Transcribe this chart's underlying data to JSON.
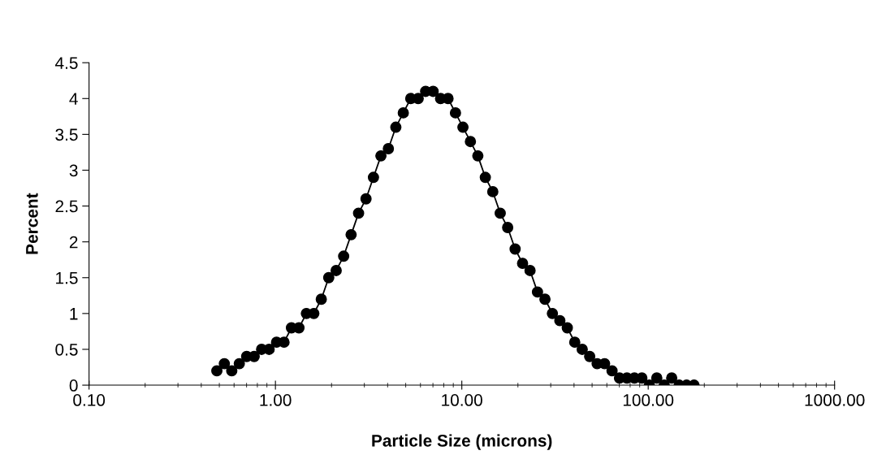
{
  "chart_data": {
    "type": "line",
    "xlabel": "Particle Size (microns)",
    "ylabel": "Percent",
    "log": "x",
    "marker": "circle",
    "line_style": "solid",
    "grid": false,
    "xlim": [
      0.1,
      1000
    ],
    "xticks": [
      {
        "value": 0.1,
        "label": "0.10"
      },
      {
        "value": 1,
        "label": "1.00"
      },
      {
        "value": 10,
        "label": "10.00"
      },
      {
        "value": 100,
        "label": "100.00"
      },
      {
        "value": 1000,
        "label": "1000.00"
      }
    ],
    "ylim": [
      0,
      4.5
    ],
    "yticks": [
      0,
      0.5,
      1,
      1.5,
      2,
      2.5,
      3,
      3.5,
      4,
      4.5
    ],
    "x": [
      0.485,
      0.532,
      0.583,
      0.64,
      0.701,
      0.769,
      0.843,
      0.925,
      1.014,
      1.112,
      1.219,
      1.337,
      1.466,
      1.607,
      1.762,
      1.932,
      2.118,
      2.323,
      2.547,
      2.793,
      3.062,
      3.357,
      3.681,
      4.036,
      4.426,
      4.853,
      5.321,
      5.834,
      6.397,
      7.015,
      7.691,
      8.433,
      9.247,
      10.14,
      11.12,
      12.19,
      13.37,
      14.66,
      16.07,
      17.62,
      19.32,
      21.18,
      23.23,
      25.47,
      27.93,
      30.62,
      33.57,
      36.81,
      40.36,
      44.26,
      48.53,
      53.21,
      58.34,
      63.97,
      70.15,
      76.91,
      84.33,
      92.47,
      101.4,
      111.2,
      121.9,
      133.7,
      146.6,
      160.7,
      176.2
    ],
    "series": [
      {
        "color": "#000000",
        "values": [
          0.2,
          0.3,
          0.2,
          0.3,
          0.4,
          0.4,
          0.5,
          0.5,
          0.6,
          0.6,
          0.8,
          0.8,
          1.0,
          1.0,
          1.2,
          1.5,
          1.6,
          1.8,
          2.1,
          2.4,
          2.6,
          2.9,
          3.2,
          3.3,
          3.6,
          3.8,
          4.0,
          4.0,
          4.1,
          4.1,
          4.0,
          4.0,
          3.8,
          3.6,
          3.4,
          3.2,
          2.9,
          2.7,
          2.4,
          2.2,
          1.9,
          1.7,
          1.6,
          1.3,
          1.2,
          1.0,
          0.9,
          0.8,
          0.6,
          0.5,
          0.4,
          0.3,
          0.3,
          0.2,
          0.1,
          0.1,
          0.1,
          0.1,
          0.0,
          0.1,
          0.0,
          0.1,
          0.0,
          0.0,
          0.0
        ]
      }
    ]
  }
}
